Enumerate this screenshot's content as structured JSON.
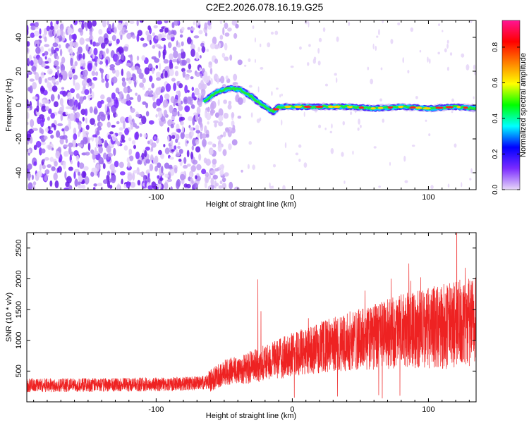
{
  "page_title": "C2E2.2026.078.16.19.G25",
  "chart_data": [
    {
      "type": "heatmap",
      "xlabel": "Height of straight line (km)",
      "ylabel": "Frequency (Hz)",
      "xlim": [
        -195,
        135
      ],
      "ylim": [
        -50,
        50
      ],
      "x_ticks": [
        -100,
        0,
        100
      ],
      "y_ticks": [
        -40,
        -20,
        0,
        20,
        40
      ],
      "colorbar": {
        "label": "Normalized spectral amplitude",
        "range": [
          0,
          0.95
        ],
        "ticks": [
          0.0,
          0.2,
          0.4,
          0.6,
          0.8
        ],
        "colors": [
          "#e8d8f8",
          "#7b2bff",
          "#0000ff",
          "#00ffff",
          "#00ff00",
          "#ffff00",
          "#ff8000",
          "#ff0000",
          "#ff1493"
        ]
      },
      "ridge": {
        "x": [
          -65,
          -55,
          -45,
          -38,
          -30,
          -22,
          -18,
          -14,
          -10,
          0,
          20,
          40,
          60,
          80,
          100,
          120,
          135
        ],
        "y": [
          2,
          8,
          10,
          9,
          5,
          0,
          -2,
          -4,
          -1,
          -1,
          -1,
          -1,
          -2,
          -1,
          -2,
          -1,
          -2
        ]
      },
      "series": [
        {
          "values": [
            -195,
            -65
          ],
          "name": ""
        }
      ]
    },
    {
      "type": "line",
      "xlabel": "Height of straight line (km)",
      "ylabel": "SNR (10 * v/v)",
      "xlim": [
        -195,
        135
      ],
      "ylim": [
        0,
        2750
      ],
      "x_ticks": [
        -100,
        0,
        100
      ],
      "y_ticks": [
        500,
        1000,
        1500,
        2000,
        2500
      ],
      "color": "#ee2222",
      "trend": {
        "x": [
          -195,
          -150,
          -100,
          -70,
          -62,
          -50,
          -30,
          -10,
          0,
          20,
          40,
          60,
          80,
          100,
          120,
          135
        ],
        "y": [
          270,
          275,
          285,
          300,
          320,
          480,
          560,
          700,
          770,
          880,
          980,
          1050,
          1150,
          1200,
          1250,
          1280
        ]
      }
    }
  ]
}
